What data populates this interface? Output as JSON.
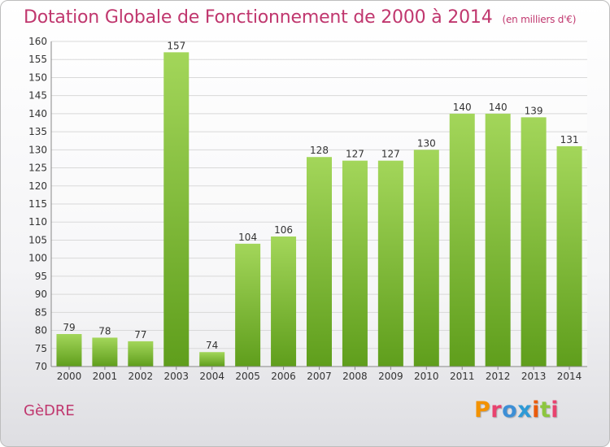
{
  "chart_data": {
    "type": "bar",
    "title": "Dotation Globale de Fonctionnement de 2000 à 2014",
    "subtitle": "(en milliers d'€)",
    "categories": [
      "2000",
      "2001",
      "2002",
      "2003",
      "2004",
      "2005",
      "2006",
      "2007",
      "2008",
      "2009",
      "2010",
      "2011",
      "2012",
      "2013",
      "2014"
    ],
    "values": [
      79,
      78,
      77,
      157,
      74,
      104,
      106,
      128,
      127,
      127,
      130,
      140,
      140,
      139,
      131
    ],
    "ylim": [
      70,
      160
    ],
    "yticks": [
      70,
      75,
      80,
      85,
      90,
      95,
      100,
      105,
      110,
      115,
      120,
      125,
      130,
      135,
      140,
      145,
      150,
      155,
      160
    ],
    "xlabel": "",
    "ylabel": "",
    "grid": true,
    "bar_color": "#8cc63f"
  },
  "footer": {
    "commune": "GèDRE",
    "logo": [
      "P",
      "r",
      "o",
      "x",
      "i",
      "t",
      "i"
    ]
  },
  "colors": {
    "title": "#c0376e",
    "logo": [
      "#f39200",
      "#e8436f",
      "#3d8fd6",
      "#2e9ad6",
      "#ea5b0c",
      "#8cc63f",
      "#e8436f"
    ]
  }
}
